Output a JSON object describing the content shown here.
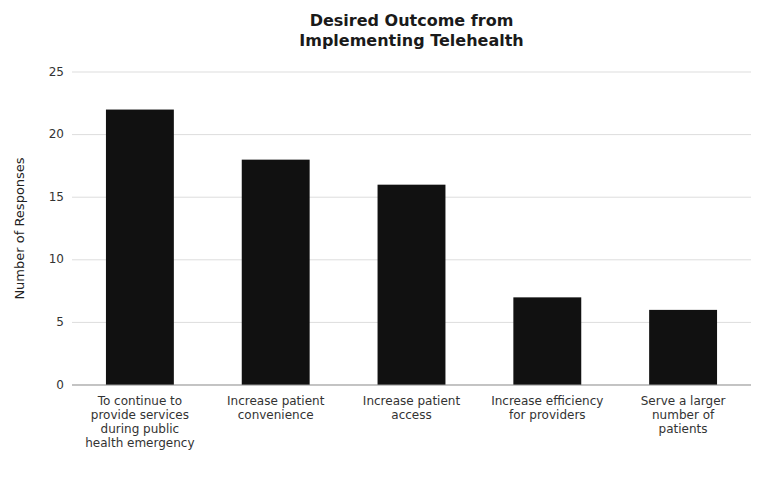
{
  "chart_data": {
    "type": "bar",
    "title": "Desired Outcome from\nImplementing Telehealth",
    "ylabel": "Number of Responses",
    "categories": [
      "To continue to\nprovide services\nduring public\nhealth emergency",
      "Increase patient\nconvenience",
      "Increase patient\naccess",
      "Increase efficiency\nfor providers",
      "Serve a larger\nnumber of\npatients"
    ],
    "values": [
      22,
      18,
      16,
      7,
      6
    ],
    "color": "#111111",
    "ylim": [
      0,
      25
    ],
    "yticks": [
      0,
      5,
      10,
      15,
      20,
      25
    ],
    "grid": true
  }
}
